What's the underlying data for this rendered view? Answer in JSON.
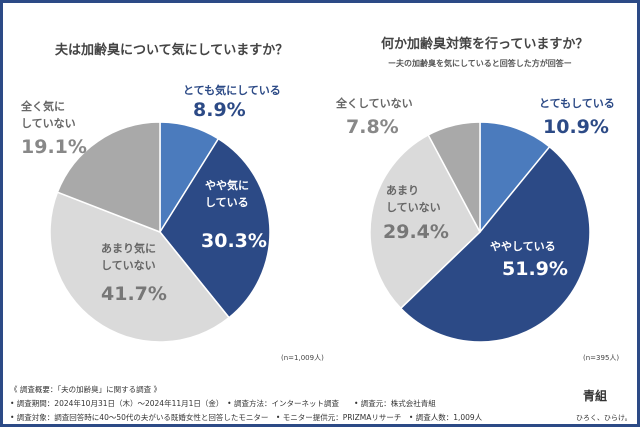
{
  "chart_data": [
    {
      "type": "pie",
      "title": "夫は加齢臭について気にしていますか？",
      "note": "(n=1,009人)",
      "slices": [
        {
          "label": "とても気にしている",
          "value": 8.9,
          "display": "8.9%",
          "color": "#4b7bbd"
        },
        {
          "label": "やや気にしている",
          "value": 30.3,
          "display": "30.3%",
          "color": "#2c4a86"
        },
        {
          "label": "あまり気にしていない",
          "value": 41.7,
          "display": "41.7%",
          "color": "#dadada"
        },
        {
          "label": "全く気にしていない",
          "value": 19.1,
          "display": "19.1%",
          "color": "#a9a9a9"
        }
      ]
    },
    {
      "type": "pie",
      "title": "何か加齢臭対策を行っていますか？",
      "subtitle": "ー夫の加齢臭を気にしていると回答した方が回答ー",
      "note": "(n=395人)",
      "slices": [
        {
          "label": "とてもしている",
          "value": 10.9,
          "display": "10.9%",
          "color": "#4b7bbd"
        },
        {
          "label": "ややしている",
          "value": 51.9,
          "display": "51.9%",
          "color": "#2c4a86"
        },
        {
          "label": "あまりしていない",
          "value": 29.4,
          "display": "29.4%",
          "color": "#dadada"
        },
        {
          "label": "全くしていない",
          "value": 7.8,
          "display": "7.8%",
          "color": "#a9a9a9"
        }
      ]
    }
  ],
  "labels": {
    "l0a": "とても気にしている",
    "l1a": "やや気に",
    "l1b": "している",
    "l2a": "あまり気に",
    "l2b": "していない",
    "l3a": "全く気に",
    "l3b": "していない",
    "r0": "とてもしている",
    "r1": "ややしている",
    "r2a": "あまり",
    "r2b": "していない",
    "r3": "全くしていない"
  },
  "footer": {
    "line1": "《 調査概要：「夫の加齢臭」に関する調査 》",
    "line2": "• 調査期間：2024年10月31日（木）〜2024年11月1日（金）　• 調査方法：インターネット調査　　• 調査元：株式会社青組",
    "line3": "• 調査対象：調査回答時に40〜50代の夫がいる既婚女性と回答したモニター　• モニター提供元：PRIZMAリサーチ　• 調査人数：1,009人",
    "brand": "青組",
    "tagline": "ひろく、ひらけ。"
  }
}
